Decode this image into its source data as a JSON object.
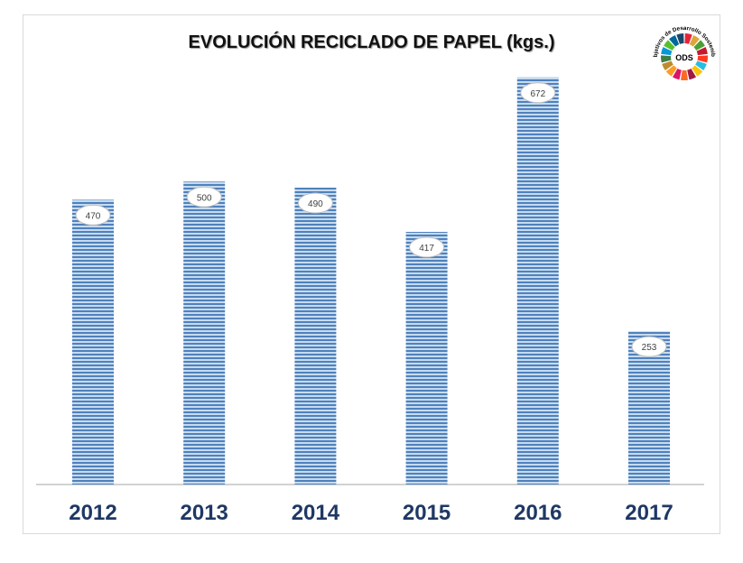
{
  "chart_data": {
    "type": "bar",
    "title": "EVOLUCIÓN RECICLADO DE PAPEL (kgs.)",
    "categories": [
      "2012",
      "2013",
      "2014",
      "2015",
      "2016",
      "2017"
    ],
    "values": [
      470,
      500,
      490,
      417,
      672,
      253
    ],
    "ylim": [
      0,
      700
    ],
    "grid": false,
    "legend": "none",
    "xlabel": "",
    "ylabel": "",
    "colors": {
      "bar_light": "#c6dbef",
      "bar_dark": "#4f81bd",
      "category_label": "#1f3864",
      "axis": "#a6a6a6"
    }
  },
  "logo": {
    "arc_text": "Objetivos de Desarrollo Sostenible",
    "center_text": "ODS",
    "icon": "sdg-wheel-icon"
  }
}
